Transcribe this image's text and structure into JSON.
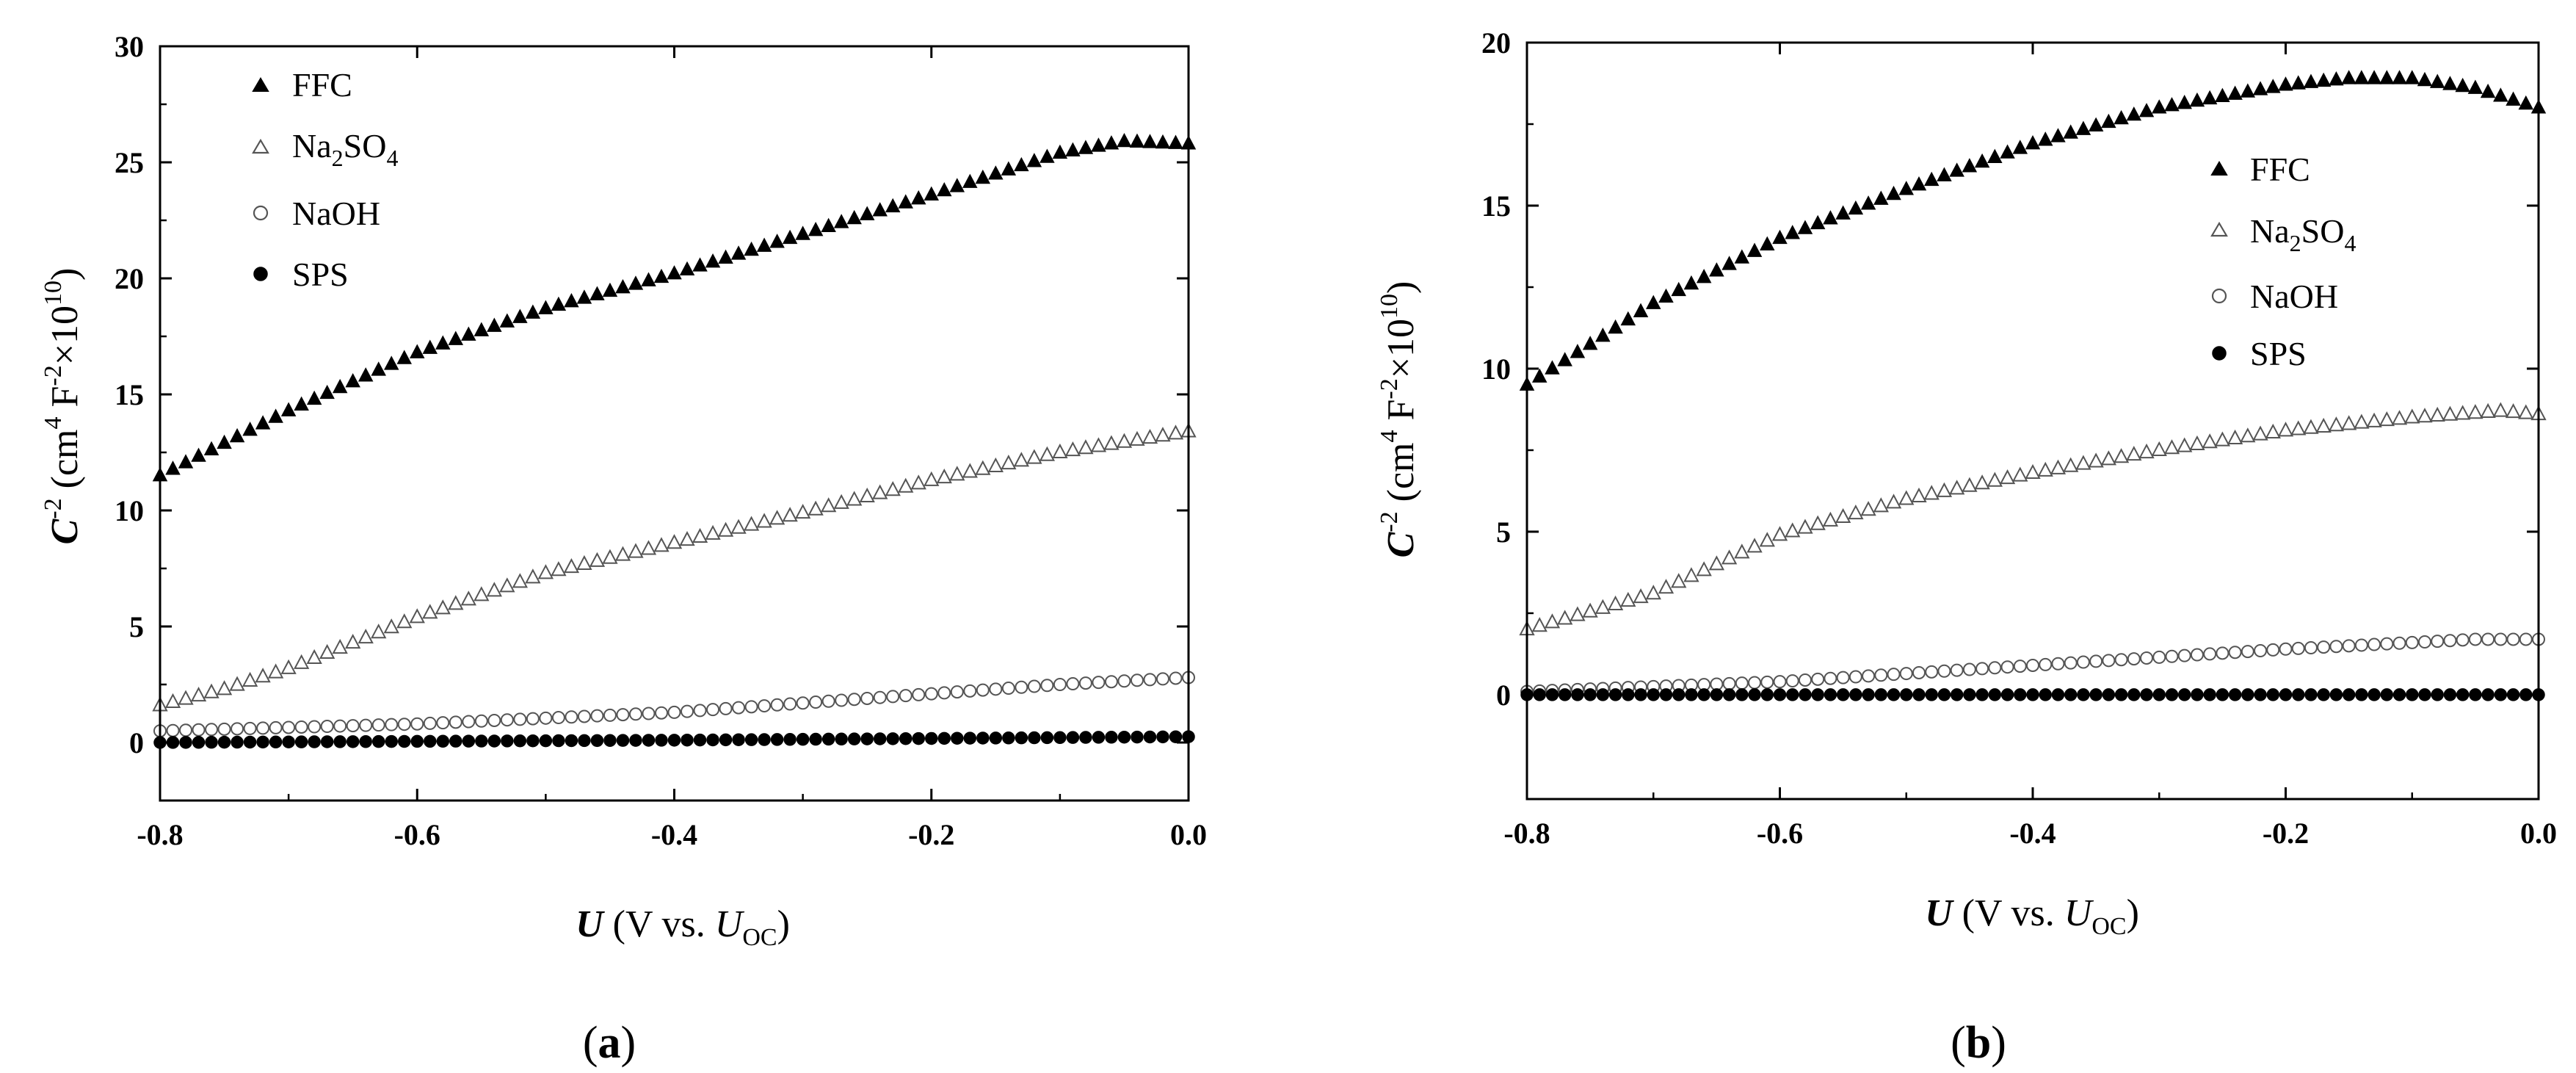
{
  "chart_data": [
    {
      "type": "scatter",
      "panel_label": {
        "open": "(",
        "letter": "a",
        "close": ")"
      },
      "xlabel": {
        "var": "U",
        "text": " (V vs. ",
        "sub_var": "U",
        "sub": "OC",
        "close": ")"
      },
      "ylabel": {
        "var": "C",
        "sup": "-2",
        "text_a": " (cm",
        "sup_a": "4",
        "text_b": " F",
        "sup_b": "-2",
        "text_c": "×10",
        "sup_c": "10",
        "close": ")"
      },
      "xlim": [
        -0.8,
        0.0
      ],
      "ylim": [
        -2.5,
        30
      ],
      "xticks": [
        -0.8,
        -0.6,
        -0.4,
        -0.2,
        0.0
      ],
      "xtick_labels": [
        "-0.8",
        "-0.6",
        "-0.4",
        "-0.2",
        "0.0"
      ],
      "yticks": [
        0,
        5,
        10,
        15,
        20,
        25,
        30
      ],
      "ytick_labels": [
        "0",
        "5",
        "10",
        "15",
        "20",
        "25",
        "30"
      ],
      "grid": false,
      "legend_position": "top-left",
      "series": [
        {
          "legend": {
            "text": "FFC",
            "sub": "",
            "text2": ""
          },
          "marker": "triangle-filled",
          "x": [
            -0.8,
            -0.7,
            -0.6,
            -0.5,
            -0.4,
            -0.3,
            -0.2,
            -0.1,
            -0.05,
            0.0
          ],
          "y": [
            11.5,
            14.3,
            16.8,
            18.7,
            20.2,
            21.9,
            23.6,
            25.4,
            25.9,
            25.8
          ]
        },
        {
          "legend": {
            "text": "Na",
            "sub": "2",
            "text2": "SO",
            "sub2": "4"
          },
          "marker": "triangle-open",
          "x": [
            -0.8,
            -0.75,
            -0.7,
            -0.65,
            -0.6,
            -0.5,
            -0.4,
            -0.3,
            -0.2,
            -0.1,
            0.0
          ],
          "y": [
            1.6,
            2.3,
            3.2,
            4.3,
            5.4,
            7.3,
            8.6,
            9.9,
            11.3,
            12.5,
            13.4
          ]
        },
        {
          "legend": {
            "text": "NaOH",
            "sub": "",
            "text2": ""
          },
          "marker": "circle-open",
          "x": [
            -0.8,
            -0.6,
            -0.4,
            -0.2,
            -0.1,
            0.0
          ],
          "y": [
            0.5,
            0.8,
            1.3,
            2.1,
            2.5,
            2.8
          ]
        },
        {
          "legend": {
            "text": "SPS",
            "sub": "",
            "text2": ""
          },
          "marker": "circle-filled",
          "x": [
            -0.8,
            -0.4,
            0.0
          ],
          "y": [
            0.0,
            0.1,
            0.25
          ]
        }
      ]
    },
    {
      "type": "scatter",
      "panel_label": {
        "open": "(",
        "letter": "b",
        "close": ")"
      },
      "xlabel": {
        "var": "U",
        "text": " (V vs. ",
        "sub_var": "U",
        "sub": "OC",
        "close": ")"
      },
      "ylabel": {
        "var": "C",
        "sup": "-2",
        "text_a": " (cm",
        "sup_a": "4",
        "text_b": " F",
        "sup_b": "-2",
        "text_c": "×10",
        "sup_c": "10",
        "close": ")"
      },
      "xlim": [
        -0.8,
        0.0
      ],
      "ylim": [
        -3.2,
        20
      ],
      "xticks": [
        -0.8,
        -0.6,
        -0.4,
        -0.2,
        0.0
      ],
      "xtick_labels": [
        "-0.8",
        "-0.6",
        "-0.4",
        "-0.2",
        "0.0"
      ],
      "yticks": [
        0,
        5,
        10,
        15,
        20
      ],
      "ytick_labels": [
        "0",
        "5",
        "10",
        "15",
        "20"
      ],
      "grid": false,
      "legend_position": "right",
      "series": [
        {
          "legend": {
            "text": "FFC",
            "sub": "",
            "text2": ""
          },
          "marker": "triangle-filled",
          "x": [
            -0.8,
            -0.7,
            -0.6,
            -0.5,
            -0.4,
            -0.3,
            -0.2,
            -0.15,
            -0.1,
            -0.05,
            0.0
          ],
          "y": [
            9.5,
            12.0,
            14.0,
            15.5,
            16.9,
            18.0,
            18.7,
            18.9,
            18.9,
            18.6,
            18.0
          ]
        },
        {
          "legend": {
            "text": "Na",
            "sub": "2",
            "text2": "SO",
            "sub2": "4"
          },
          "marker": "triangle-open",
          "x": [
            -0.8,
            -0.7,
            -0.65,
            -0.6,
            -0.5,
            -0.4,
            -0.3,
            -0.2,
            -0.1,
            -0.03,
            0.0
          ],
          "y": [
            2.0,
            3.1,
            4.0,
            4.9,
            6.0,
            6.8,
            7.5,
            8.1,
            8.5,
            8.7,
            8.6
          ]
        },
        {
          "legend": {
            "text": "NaOH",
            "sub": "",
            "text2": ""
          },
          "marker": "circle-open",
          "x": [
            -0.8,
            -0.6,
            -0.4,
            -0.2,
            -0.05,
            0.0
          ],
          "y": [
            0.1,
            0.4,
            0.9,
            1.4,
            1.7,
            1.7
          ]
        },
        {
          "legend": {
            "text": "SPS",
            "sub": "",
            "text2": ""
          },
          "marker": "circle-filled",
          "x": [
            -0.8,
            -0.4,
            0.0
          ],
          "y": [
            0.0,
            0.0,
            0.0
          ]
        }
      ]
    }
  ]
}
